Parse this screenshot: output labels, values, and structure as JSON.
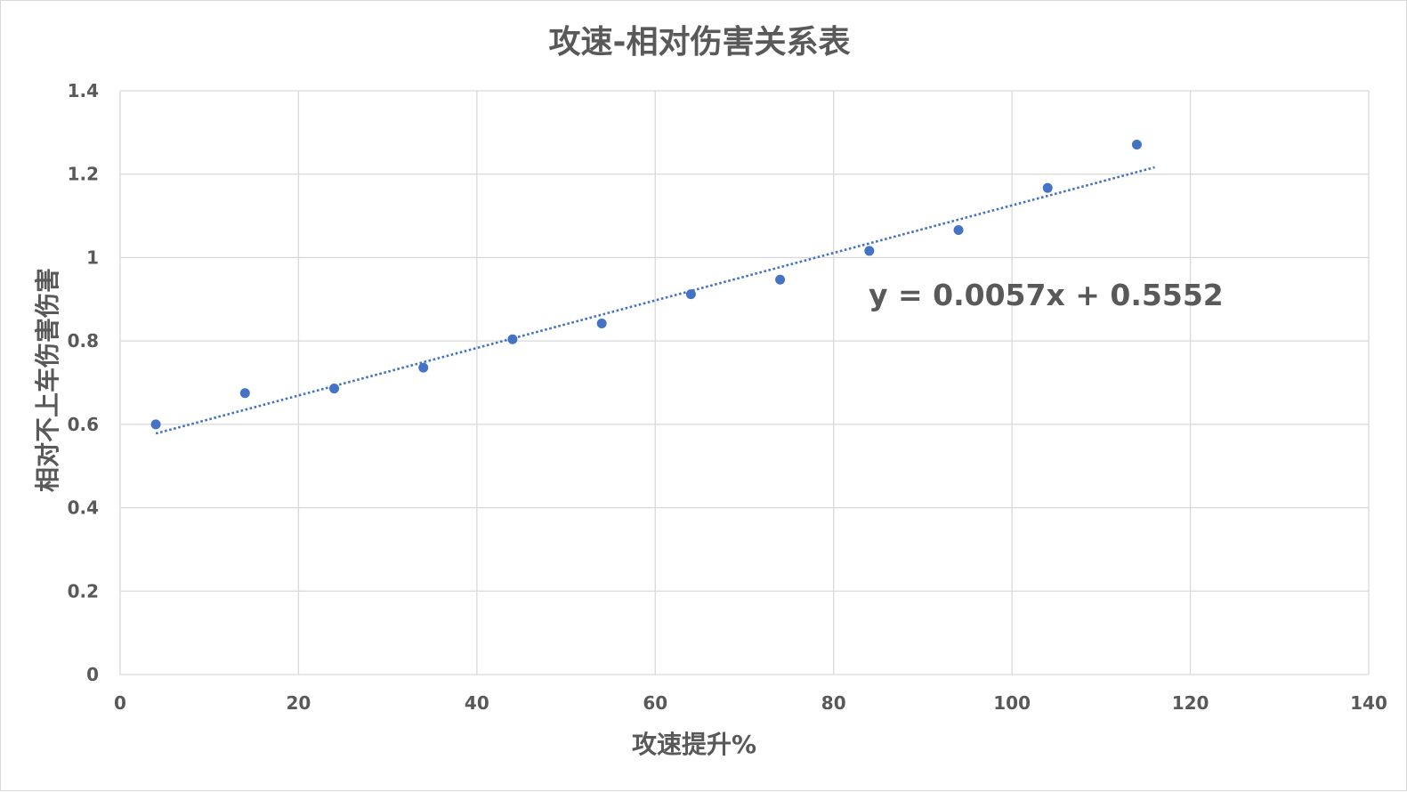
{
  "chart_data": {
    "type": "scatter",
    "title": "攻速-相对伤害关系表",
    "xlabel": "攻速提升%",
    "ylabel": "相对不上车伤害伤害",
    "xlim": [
      0,
      140
    ],
    "ylim": [
      0,
      1.4
    ],
    "x_ticks": [
      0,
      20,
      40,
      60,
      80,
      100,
      120,
      140
    ],
    "y_ticks": [
      0,
      0.2,
      0.4,
      0.6,
      0.8,
      1,
      1.2,
      1.4
    ],
    "x_tick_labels": [
      "0",
      "20",
      "40",
      "60",
      "80",
      "100",
      "120",
      "140"
    ],
    "y_tick_labels": [
      "0",
      "0.2",
      "0.4",
      "0.6",
      "0.8",
      "1",
      "1.2",
      "1.4"
    ],
    "grid": true,
    "legend": "none",
    "series": [
      {
        "x": [
          4,
          14,
          24,
          34,
          44,
          54,
          64,
          74,
          84,
          94,
          104,
          114
        ],
        "y": [
          0.6,
          0.675,
          0.686,
          0.736,
          0.804,
          0.842,
          0.912,
          0.947,
          1.016,
          1.066,
          1.167,
          1.271
        ],
        "color": "#4472c4"
      }
    ],
    "trendline": {
      "type": "linear",
      "slope": 0.0057,
      "intercept": 0.5552,
      "x_range": [
        4,
        116
      ],
      "color": "#4472c4",
      "style": "dotted",
      "equation": "y = 0.0057x + 0.5552"
    }
  }
}
